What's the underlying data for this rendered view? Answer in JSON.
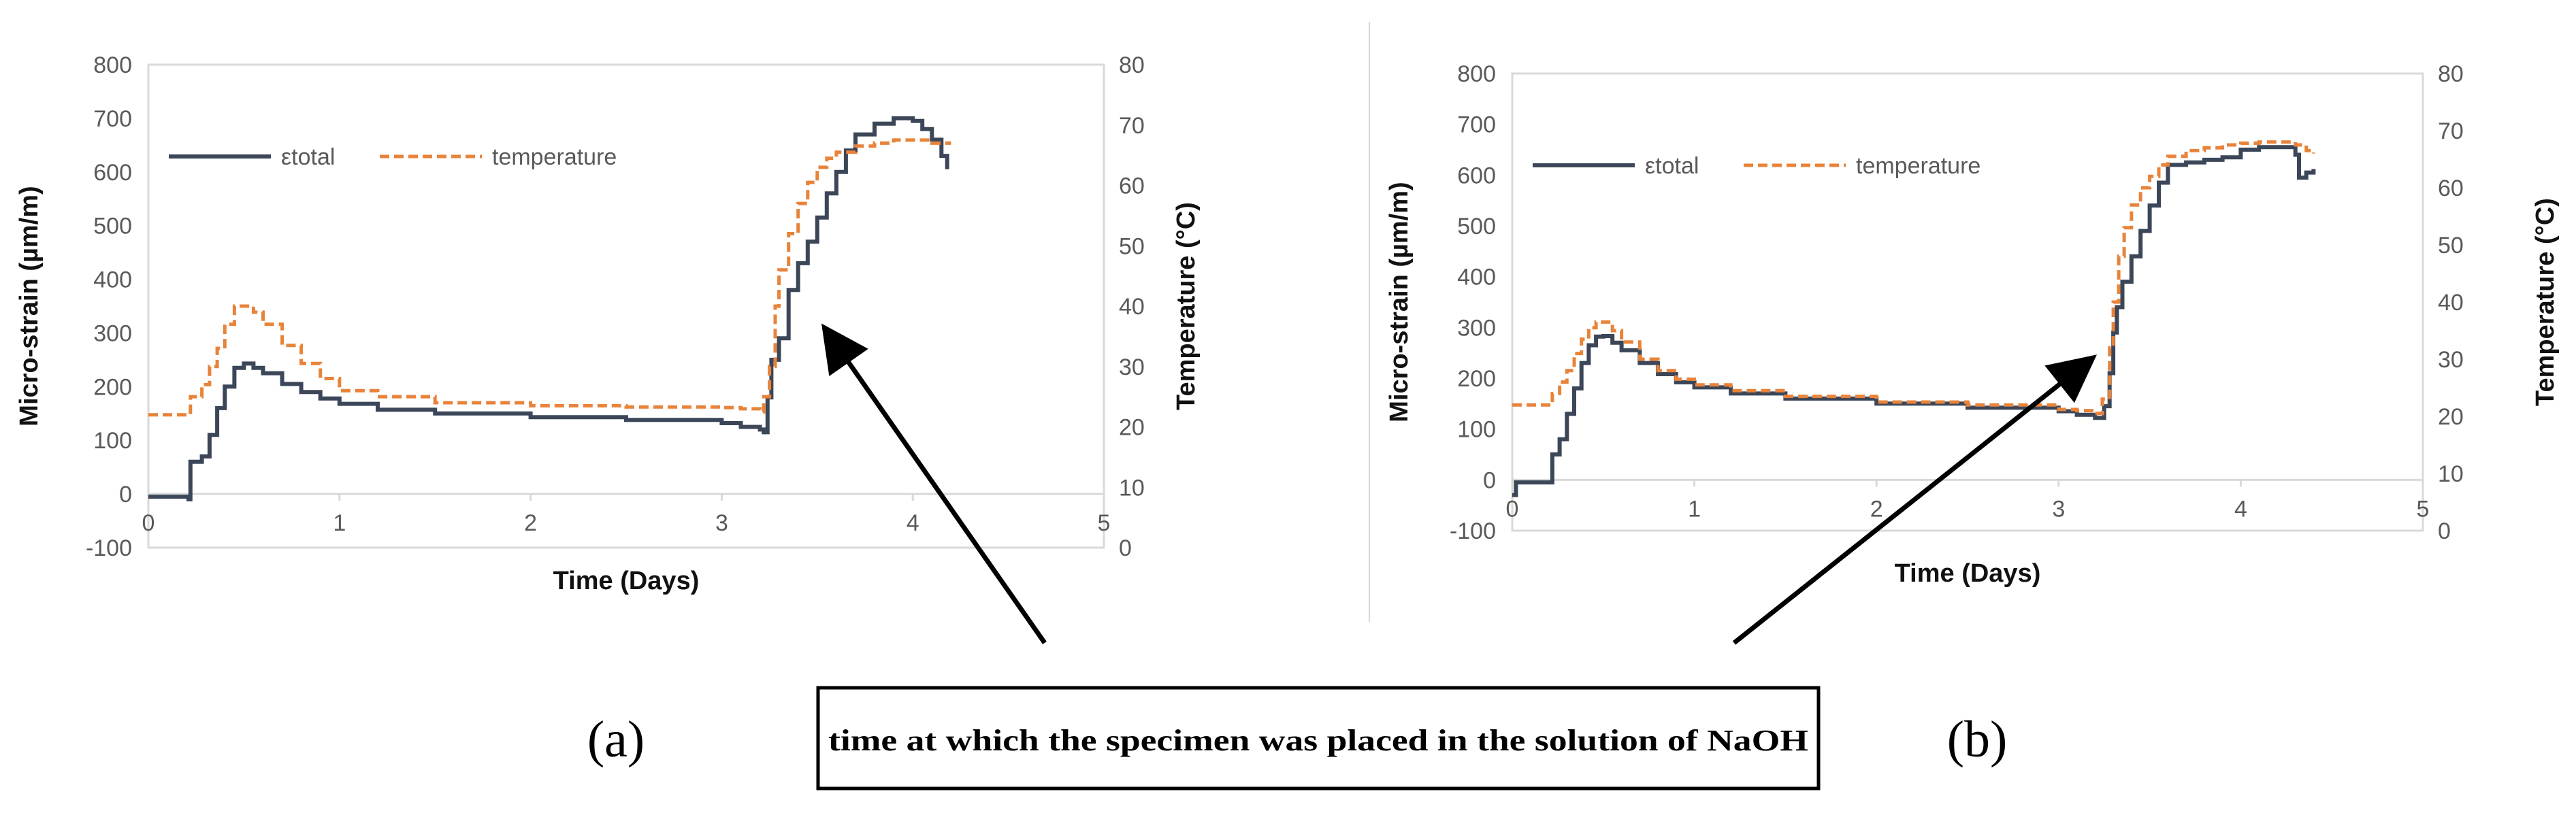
{
  "chart_data": [
    {
      "type": "line",
      "panel_label": "(a)",
      "xlabel": "Time (Days)",
      "ylabel": "Micro-strain (µm/m)",
      "y2label": "Temperature (°C)",
      "xlim": [
        0,
        5
      ],
      "ylim": [
        -100,
        800
      ],
      "y2lim": [
        0,
        80
      ],
      "xticks": [
        "0",
        "1",
        "2",
        "3",
        "4",
        "5"
      ],
      "yticks": [
        "-100",
        "0",
        "100",
        "200",
        "300",
        "400",
        "500",
        "600",
        "700",
        "800"
      ],
      "y2ticks": [
        "0",
        "10",
        "20",
        "30",
        "40",
        "50",
        "60",
        "70",
        "80"
      ],
      "grid": false,
      "legend": "top-left",
      "series": [
        {
          "name": "εtotal",
          "axis": "left",
          "color": "#3b4658",
          "style": "solid",
          "x": [
            0,
            0.18,
            0.21,
            0.22,
            0.28,
            0.32,
            0.36,
            0.4,
            0.45,
            0.5,
            0.55,
            0.6,
            0.7,
            0.8,
            0.9,
            1.0,
            1.2,
            1.5,
            2.0,
            2.5,
            3.0,
            3.1,
            3.2,
            3.22,
            3.24,
            3.26,
            3.3,
            3.35,
            3.4,
            3.45,
            3.5,
            3.55,
            3.6,
            3.65,
            3.7,
            3.8,
            3.9,
            4.0,
            4.05,
            4.1,
            4.15,
            4.18
          ],
          "y": [
            -5,
            -5,
            -10,
            60,
            70,
            110,
            160,
            200,
            235,
            243,
            235,
            225,
            205,
            190,
            178,
            168,
            157,
            150,
            143,
            138,
            132,
            125,
            120,
            115,
            180,
            250,
            290,
            380,
            430,
            470,
            515,
            560,
            600,
            640,
            670,
            690,
            700,
            695,
            680,
            660,
            630,
            605
          ]
        },
        {
          "name": "temperature",
          "axis": "right",
          "color": "#e8833a",
          "style": "dashed",
          "x": [
            0,
            0.15,
            0.22,
            0.28,
            0.32,
            0.36,
            0.4,
            0.45,
            0.5,
            0.55,
            0.6,
            0.7,
            0.8,
            0.9,
            1.0,
            1.2,
            1.5,
            2.0,
            2.5,
            3.0,
            3.1,
            3.2,
            3.22,
            3.25,
            3.28,
            3.3,
            3.35,
            3.4,
            3.45,
            3.5,
            3.55,
            3.6,
            3.7,
            3.8,
            3.9,
            4.0,
            4.1,
            4.2
          ],
          "y": [
            22,
            22,
            25,
            27,
            30,
            33,
            37,
            40,
            40,
            39,
            37,
            33.5,
            30.5,
            28,
            26,
            25,
            24,
            23.5,
            23.3,
            23.2,
            23,
            22.5,
            25,
            30,
            40,
            46,
            52,
            57,
            60.5,
            63,
            64.5,
            65.5,
            66.5,
            67,
            67.5,
            67.5,
            67,
            67
          ]
        }
      ]
    },
    {
      "type": "line",
      "panel_label": "(b)",
      "xlabel": "Time (Days)",
      "ylabel": "Micro-strain (µm/m)",
      "y2label": "Temperature (°C)",
      "xlim": [
        0,
        5
      ],
      "ylim": [
        -100,
        800
      ],
      "y2lim": [
        0,
        80
      ],
      "xticks": [
        "0",
        "1",
        "2",
        "3",
        "4",
        "5"
      ],
      "yticks": [
        "-100",
        "0",
        "100",
        "200",
        "300",
        "400",
        "500",
        "600",
        "700",
        "800"
      ],
      "y2ticks": [
        "0",
        "10",
        "20",
        "30",
        "40",
        "50",
        "60",
        "70",
        "80"
      ],
      "grid": false,
      "legend": "top-left",
      "series": [
        {
          "name": "εtotal",
          "axis": "left",
          "color": "#3b4658",
          "style": "solid",
          "x": [
            0,
            0.02,
            0.2,
            0.22,
            0.26,
            0.3,
            0.34,
            0.38,
            0.42,
            0.46,
            0.5,
            0.55,
            0.6,
            0.7,
            0.8,
            0.9,
            1.0,
            1.2,
            1.5,
            2.0,
            2.5,
            3.0,
            3.1,
            3.2,
            3.25,
            3.28,
            3.3,
            3.32,
            3.35,
            3.4,
            3.45,
            3.5,
            3.55,
            3.6,
            3.7,
            3.8,
            3.9,
            4.0,
            4.1,
            4.2,
            4.3,
            4.32,
            4.36,
            4.4
          ],
          "y": [
            -30,
            -5,
            -5,
            50,
            80,
            130,
            180,
            230,
            265,
            282,
            283,
            270,
            255,
            230,
            208,
            192,
            182,
            170,
            160,
            150,
            142,
            135,
            128,
            122,
            145,
            210,
            290,
            340,
            390,
            440,
            490,
            540,
            585,
            620,
            625,
            630,
            635,
            650,
            655,
            655,
            640,
            595,
            605,
            612
          ]
        },
        {
          "name": "temperature",
          "axis": "right",
          "color": "#e8833a",
          "style": "dashed",
          "x": [
            0,
            0.18,
            0.22,
            0.26,
            0.3,
            0.34,
            0.38,
            0.42,
            0.46,
            0.5,
            0.55,
            0.6,
            0.7,
            0.8,
            0.9,
            1.0,
            1.2,
            1.5,
            2.0,
            2.5,
            3.0,
            3.1,
            3.2,
            3.24,
            3.28,
            3.3,
            3.33,
            3.36,
            3.4,
            3.45,
            3.5,
            3.55,
            3.6,
            3.7,
            3.8,
            3.9,
            4.0,
            4.1,
            4.2,
            4.3,
            4.36,
            4.4
          ],
          "y": [
            22,
            22,
            24,
            26,
            28,
            31,
            33.5,
            35.5,
            36.5,
            36.5,
            35,
            33,
            30,
            28,
            26.5,
            25.5,
            24.5,
            23.5,
            22.5,
            22,
            21.2,
            21,
            20.5,
            23,
            32,
            40,
            48,
            53,
            57,
            60,
            62,
            64,
            65.5,
            66.5,
            67,
            67.5,
            67.8,
            68,
            68,
            67.5,
            66.5,
            66
          ]
        }
      ]
    }
  ],
  "annotation": {
    "text": "time at which the specimen was placed in the solution of NaOH"
  },
  "colors": {
    "strain": "#3b4658",
    "temperature": "#e8833a",
    "axis": "#d9d9d9",
    "tick_text": "#595959",
    "label_text": "#111111"
  }
}
